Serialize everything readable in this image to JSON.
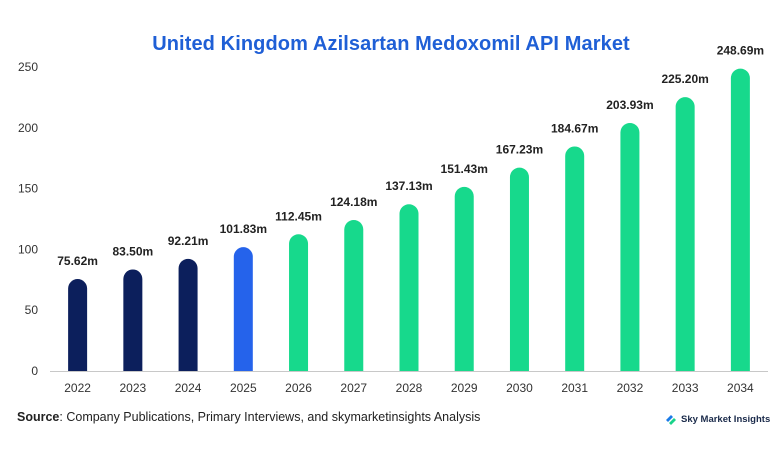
{
  "title": "United Kingdom Azilsartan Medoxomil API Market",
  "source": {
    "key": "Source",
    "text": ": Company Publications, Primary Interviews, and skymarketinsights Analysis"
  },
  "brand": {
    "name": "Sky Market Insights"
  },
  "colors": {
    "historical": "#0c1f5c",
    "current": "#2563eb",
    "forecast": "#17d98c",
    "title": "#1f5fd6"
  },
  "chart_data": {
    "type": "bar",
    "title": "United Kingdom Azilsartan Medoxomil API Market",
    "xlabel": "",
    "ylabel": "",
    "categories": [
      "2022",
      "2023",
      "2024",
      "2025",
      "2026",
      "2027",
      "2028",
      "2029",
      "2030",
      "2031",
      "2032",
      "2033",
      "2034"
    ],
    "values": [
      75.62,
      83.5,
      92.21,
      101.83,
      112.45,
      124.18,
      137.13,
      151.43,
      167.23,
      184.67,
      203.93,
      225.2,
      248.69
    ],
    "labels": [
      "75.62m",
      "83.50m",
      "92.21m",
      "101.83m",
      "112.45m",
      "124.18m",
      "137.13m",
      "151.43m",
      "167.23m",
      "184.67m",
      "203.93m",
      "225.20m",
      "248.69m"
    ],
    "bar_groups": [
      "historical",
      "historical",
      "historical",
      "current",
      "forecast",
      "forecast",
      "forecast",
      "forecast",
      "forecast",
      "forecast",
      "forecast",
      "forecast",
      "forecast"
    ],
    "yticks": [
      0,
      50,
      100,
      150,
      200,
      250
    ],
    "ylim": [
      0,
      250
    ],
    "grid": false,
    "legend": "none"
  }
}
